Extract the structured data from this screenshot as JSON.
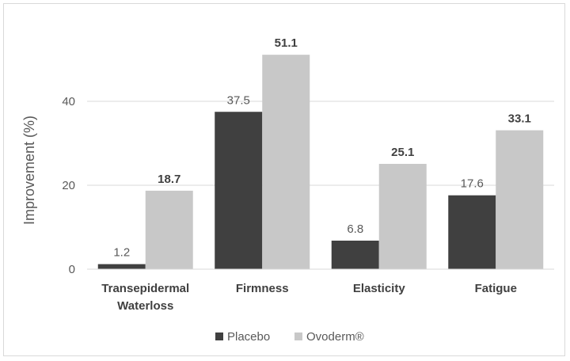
{
  "chart_data": {
    "type": "bar",
    "title": "",
    "xlabel": "",
    "ylabel": "Improvement (%)",
    "ylim": [
      0,
      55
    ],
    "yticks": [
      0,
      20,
      40
    ],
    "grid": true,
    "legend_position": "bottom",
    "categories": [
      [
        "Transepidermal",
        "Waterloss"
      ],
      [
        "Firmness"
      ],
      [
        "Elasticity"
      ],
      [
        "Fatigue"
      ]
    ],
    "series": [
      {
        "name": "Placebo",
        "color": "#404040",
        "values": [
          1.2,
          37.5,
          6.8,
          17.6
        ],
        "labels": [
          "1.2",
          "37.5",
          "6.8",
          "17.6"
        ]
      },
      {
        "name": "Ovoderm®",
        "color": "#c8c8c8",
        "values": [
          18.7,
          51.1,
          25.1,
          33.1
        ],
        "labels": [
          "18.7",
          "51.1",
          "25.1",
          "33.1"
        ]
      }
    ]
  }
}
